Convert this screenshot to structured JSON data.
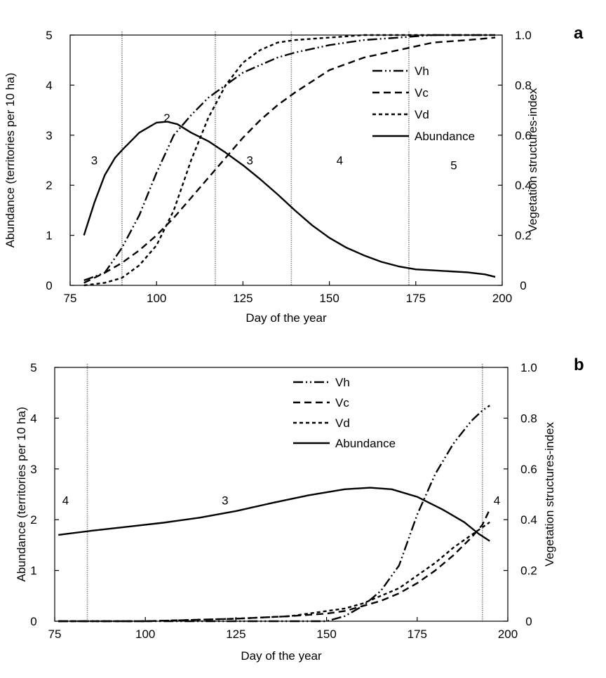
{
  "chart_data": [
    {
      "type": "line",
      "panel_label": "a",
      "xlabel": "Day of the year",
      "ylabel_left": "Abundance (territories per 10 ha)",
      "ylabel_right": "Vegetation structures-index",
      "xlim": [
        75,
        200
      ],
      "ylim_left": [
        0,
        5
      ],
      "ylim_right": [
        0,
        1
      ],
      "x_ticks": [
        "75",
        "100",
        "125",
        "150",
        "175",
        "200"
      ],
      "y_left_ticks": [
        "0",
        "1",
        "2",
        "3",
        "4",
        "5"
      ],
      "y_right_ticks": [
        "0",
        "0.2",
        "0.4",
        "0.6",
        "0.8",
        "1.0"
      ],
      "grid": false,
      "legend": [
        "Vh",
        "Vc",
        "Vd",
        "Abundance"
      ],
      "phase_boundaries": [
        90,
        117,
        139,
        173
      ],
      "phase_labels": [
        {
          "text": "3",
          "x": 82,
          "y": 2.5
        },
        {
          "text": "2",
          "x": 103,
          "y": 3.35
        },
        {
          "text": "3",
          "x": 127,
          "y": 2.5
        },
        {
          "text": "4",
          "x": 153,
          "y": 2.5
        },
        {
          "text": "5",
          "x": 186,
          "y": 2.4
        }
      ],
      "series": [
        {
          "name": "Vh",
          "axis": "right",
          "dash": "dashdotdot",
          "x": [
            79,
            85,
            90,
            95,
            100,
            105,
            110,
            115,
            120,
            125,
            130,
            135,
            140,
            150,
            160,
            170,
            180,
            190,
            198
          ],
          "y": [
            0.02,
            0.05,
            0.15,
            0.28,
            0.45,
            0.6,
            0.68,
            0.75,
            0.8,
            0.85,
            0.88,
            0.91,
            0.93,
            0.96,
            0.98,
            0.99,
            1.0,
            1.0,
            1.0
          ]
        },
        {
          "name": "Vc",
          "axis": "right",
          "dash": "longdash",
          "x": [
            79,
            85,
            90,
            95,
            100,
            105,
            110,
            115,
            120,
            125,
            130,
            135,
            140,
            150,
            160,
            170,
            180,
            190,
            198
          ],
          "y": [
            0.01,
            0.05,
            0.09,
            0.14,
            0.2,
            0.27,
            0.35,
            0.43,
            0.51,
            0.59,
            0.66,
            0.72,
            0.77,
            0.86,
            0.91,
            0.94,
            0.97,
            0.98,
            0.99
          ]
        },
        {
          "name": "Vd",
          "axis": "right",
          "dash": "shortdash",
          "x": [
            79,
            85,
            90,
            95,
            100,
            105,
            110,
            115,
            120,
            125,
            130,
            135,
            140,
            150,
            160,
            170,
            180,
            190,
            198
          ],
          "y": [
            0.0,
            0.01,
            0.03,
            0.08,
            0.16,
            0.3,
            0.5,
            0.67,
            0.8,
            0.89,
            0.94,
            0.97,
            0.98,
            0.99,
            1.0,
            1.0,
            1.0,
            1.0,
            1.0
          ]
        },
        {
          "name": "Abundance",
          "axis": "left",
          "dash": "solid",
          "x": [
            79,
            82,
            85,
            88,
            90,
            95,
            100,
            103,
            106,
            110,
            115,
            120,
            125,
            130,
            135,
            140,
            145,
            150,
            155,
            160,
            165,
            170,
            175,
            180,
            185,
            190,
            195,
            198
          ],
          "y": [
            1.0,
            1.65,
            2.2,
            2.55,
            2.7,
            3.05,
            3.25,
            3.27,
            3.22,
            3.05,
            2.88,
            2.65,
            2.4,
            2.12,
            1.82,
            1.5,
            1.2,
            0.95,
            0.75,
            0.6,
            0.47,
            0.38,
            0.32,
            0.3,
            0.28,
            0.26,
            0.22,
            0.17
          ]
        }
      ]
    },
    {
      "type": "line",
      "panel_label": "b",
      "xlabel": "Day of the year",
      "ylabel_left": "Abundance (territories per 10 ha)",
      "ylabel_right": "Vegetation structures-index",
      "xlim": [
        75,
        200
      ],
      "ylim_left": [
        0,
        5
      ],
      "ylim_right": [
        0,
        1
      ],
      "x_ticks": [
        "75",
        "100",
        "125",
        "150",
        "175",
        "200"
      ],
      "y_left_ticks": [
        "0",
        "1",
        "2",
        "3",
        "4",
        "5"
      ],
      "y_right_ticks": [
        "0",
        "0.2",
        "0.4",
        "0.6",
        "0.8",
        "1.0"
      ],
      "grid": false,
      "legend": [
        "Vh",
        "Vc",
        "Vd",
        "Abundance"
      ],
      "phase_boundaries": [
        84,
        193
      ],
      "phase_labels": [
        {
          "text": "4",
          "x": 78,
          "y": 2.38
        },
        {
          "text": "3",
          "x": 122,
          "y": 2.38
        },
        {
          "text": "4",
          "x": 197,
          "y": 2.38
        }
      ],
      "series": [
        {
          "name": "Vh",
          "axis": "right",
          "dash": "dashdotdot",
          "x": [
            76,
            100,
            125,
            140,
            150,
            155,
            160,
            165,
            170,
            175,
            180,
            185,
            190,
            193,
            195
          ],
          "y": [
            0.0,
            0.0,
            0.0,
            0.0,
            0.0,
            0.02,
            0.06,
            0.12,
            0.22,
            0.42,
            0.58,
            0.7,
            0.79,
            0.83,
            0.85
          ]
        },
        {
          "name": "Vc",
          "axis": "right",
          "dash": "longdash",
          "x": [
            76,
            100,
            125,
            140,
            150,
            155,
            160,
            165,
            170,
            175,
            180,
            185,
            190,
            193,
            195
          ],
          "y": [
            0.0,
            0.0,
            0.01,
            0.02,
            0.03,
            0.04,
            0.06,
            0.08,
            0.11,
            0.15,
            0.2,
            0.26,
            0.33,
            0.38,
            0.44
          ]
        },
        {
          "name": "Vd",
          "axis": "right",
          "dash": "shortdash",
          "x": [
            76,
            100,
            125,
            140,
            150,
            155,
            160,
            165,
            170,
            175,
            180,
            185,
            190,
            193,
            195
          ],
          "y": [
            0.0,
            0.0,
            0.01,
            0.02,
            0.04,
            0.05,
            0.07,
            0.1,
            0.13,
            0.18,
            0.23,
            0.29,
            0.34,
            0.37,
            0.39
          ]
        },
        {
          "name": "Abundance",
          "axis": "left",
          "dash": "solid",
          "x": [
            76,
            85,
            95,
            105,
            115,
            125,
            135,
            145,
            155,
            162,
            168,
            175,
            182,
            188,
            192,
            195
          ],
          "y": [
            1.7,
            1.78,
            1.86,
            1.94,
            2.04,
            2.17,
            2.33,
            2.48,
            2.6,
            2.63,
            2.6,
            2.45,
            2.2,
            1.95,
            1.72,
            1.58
          ]
        }
      ]
    }
  ]
}
